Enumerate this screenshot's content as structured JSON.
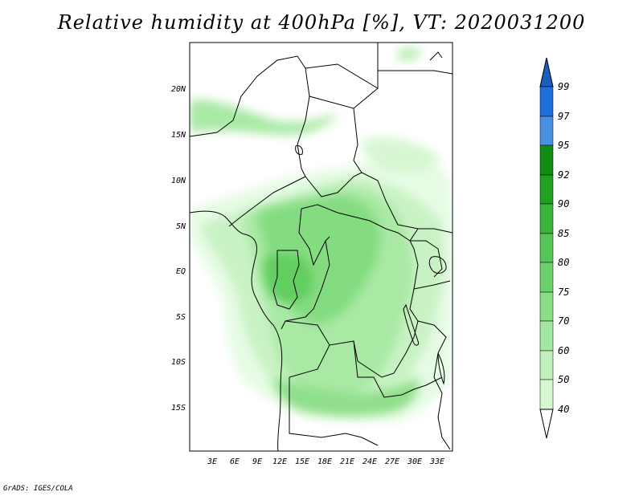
{
  "title": "Relative humidity at 400hPa [%], VT: 2020031200",
  "credit": "GrADS: IGES/COLA",
  "map": {
    "lon_range": [
      0,
      35.5
    ],
    "lat_range": [
      -20,
      24.5
    ],
    "lon_ticks": [
      "3E",
      "6E",
      "9E",
      "12E",
      "15E",
      "18E",
      "21E",
      "24E",
      "27E",
      "30E",
      "33E"
    ],
    "lat_ticks": [
      "20N",
      "15N",
      "10N",
      "5N",
      "EQ",
      "5S",
      "10S",
      "15S"
    ]
  },
  "colorbar": {
    "levels": [
      "40",
      "50",
      "60",
      "70",
      "75",
      "80",
      "85",
      "90",
      "92",
      "95",
      "97",
      "99"
    ],
    "colors": [
      "#f0fff0",
      "#d7f7d3",
      "#bff0bb",
      "#a3e8a0",
      "#8ade86",
      "#6fd16d",
      "#56c456",
      "#3bb33b",
      "#21a021",
      "#128c12",
      "#4a90e0",
      "#1f6fd9",
      "#1a5fc0"
    ]
  }
}
